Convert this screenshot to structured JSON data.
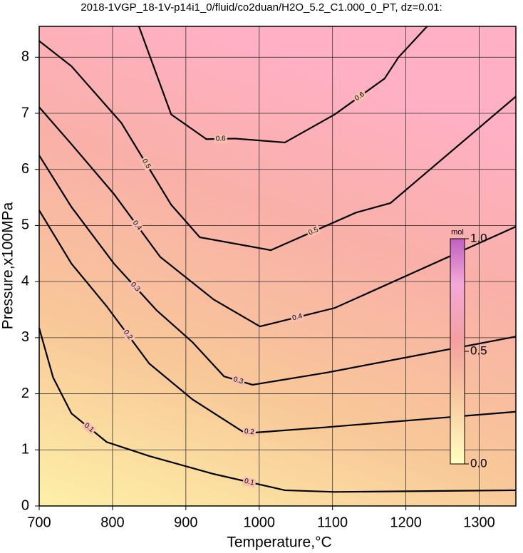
{
  "chart_data": {
    "type": "contour",
    "title": "2018-1VGP_18-1V-p14i1_0/fluid/co2duan/H2O_5.2_C1.000_0_PT, dz=0.01:",
    "x_label": "Temperature,°C",
    "y_label": "Pressure,x100MPa",
    "xlim": [
      700,
      1350
    ],
    "ylim": [
      0,
      8.55
    ],
    "xticks": [
      700,
      800,
      900,
      1000,
      1100,
      1200,
      1300
    ],
    "yticks": [
      0,
      1,
      2,
      3,
      4,
      5,
      6,
      7,
      8
    ],
    "grid": true,
    "contours": [
      {
        "level": 0.1,
        "x": [
          700,
          719,
          744,
          792,
          850,
          938,
          1035,
          1103,
          1350
        ],
        "y": [
          3.17,
          2.29,
          1.65,
          1.14,
          0.89,
          0.57,
          0.28,
          0.25,
          0.28
        ]
      },
      {
        "level": 0.2,
        "x": [
          700,
          744,
          792,
          850,
          909,
          977,
          996,
          1088,
          1350
        ],
        "y": [
          5.27,
          4.32,
          3.56,
          2.54,
          1.9,
          1.33,
          1.31,
          1.4,
          1.68
        ]
      },
      {
        "level": 0.3,
        "x": [
          700,
          744,
          802,
          860,
          909,
          952,
          991,
          1093,
          1350
        ],
        "y": [
          6.25,
          5.33,
          4.32,
          3.49,
          2.92,
          2.31,
          2.16,
          2.38,
          3.02
        ]
      },
      {
        "level": 0.4,
        "x": [
          700,
          744,
          802,
          865,
          938,
          1001,
          1103,
          1350
        ],
        "y": [
          7.11,
          6.45,
          5.56,
          4.44,
          3.68,
          3.2,
          3.53,
          4.98
        ]
      },
      {
        "level": 0.5,
        "x": [
          700,
          744,
          812,
          880,
          919,
          1016,
          1132,
          1179,
          1350
        ],
        "y": [
          8.29,
          7.84,
          6.83,
          5.37,
          4.79,
          4.56,
          5.23,
          5.4,
          7.3
        ]
      },
      {
        "level": 0.6,
        "x": [
          836,
          880,
          928,
          967,
          1035,
          1103,
          1171,
          1190,
          1229
        ],
        "y": [
          8.55,
          6.98,
          6.54,
          6.55,
          6.48,
          6.98,
          7.62,
          8.0,
          8.55
        ]
      }
    ],
    "colorbar": {
      "label": "mol",
      "lim": [
        0,
        1
      ],
      "ticks": [
        {
          "value": 0,
          "label": "0.0"
        },
        0.5,
        {
          "value": 1,
          "label": "1.0"
        }
      ]
    }
  }
}
